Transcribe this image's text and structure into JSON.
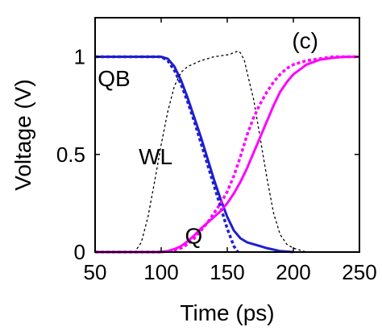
{
  "chart_data": {
    "type": "line",
    "title": "",
    "xlabel": "Time (ps)",
    "ylabel": "Voltage (V)",
    "xlim": [
      50,
      250
    ],
    "ylim": [
      0,
      1.2
    ],
    "xticks": [
      50,
      100,
      150,
      200,
      250
    ],
    "xtick_labels": [
      "50",
      "100",
      "150",
      "200",
      "250"
    ],
    "yticks": [
      0,
      0.5,
      1
    ],
    "ytick_labels": [
      "0",
      "0.5",
      "1"
    ],
    "grid": false,
    "legend": "none",
    "annotations": [
      {
        "text": "(c)",
        "x": 199,
        "y": 1.085
      },
      {
        "text": "QB",
        "x": 52,
        "y": 0.89
      },
      {
        "text": "WL",
        "x": 83,
        "y": 0.49
      },
      {
        "text": "Q",
        "x": 118,
        "y": 0.085
      }
    ],
    "series": [
      {
        "color": "#1f1fd0",
        "style": "solid",
        "x": [
          50,
          90,
          100,
          105,
          110,
          115,
          120,
          125,
          130,
          135,
          140,
          145,
          150,
          155,
          160,
          165,
          170,
          175,
          180,
          190,
          200
        ],
        "y": [
          1.0,
          1.0,
          1.0,
          0.99,
          0.95,
          0.88,
          0.79,
          0.69,
          0.59,
          0.48,
          0.37,
          0.27,
          0.18,
          0.11,
          0.07,
          0.05,
          0.04,
          0.03,
          0.02,
          0.005,
          0.0
        ]
      },
      {
        "color": "#1f1fd0",
        "style": "dotted",
        "x": [
          50,
          90,
          100,
          105,
          110,
          115,
          120,
          125,
          130,
          135,
          140,
          145,
          150,
          155,
          158
        ],
        "y": [
          1.0,
          1.0,
          1.0,
          0.98,
          0.93,
          0.86,
          0.77,
          0.67,
          0.56,
          0.45,
          0.34,
          0.23,
          0.12,
          0.03,
          0.0
        ]
      },
      {
        "color": "#000000",
        "style": "dashed",
        "x": [
          50,
          80,
          85,
          90,
          95,
          100,
          105,
          110,
          115,
          120,
          130,
          140,
          150,
          155,
          158,
          160,
          163,
          165,
          170,
          175,
          180,
          185,
          190,
          195,
          200,
          205,
          210,
          220,
          250
        ],
        "y": [
          0.0,
          0.0,
          0.05,
          0.18,
          0.36,
          0.55,
          0.72,
          0.85,
          0.92,
          0.95,
          0.98,
          1.0,
          1.01,
          1.02,
          1.03,
          1.02,
          0.98,
          0.92,
          0.78,
          0.58,
          0.38,
          0.2,
          0.09,
          0.04,
          0.02,
          0.01,
          0.0,
          0.0,
          0.0
        ]
      },
      {
        "color": "#ff00ff",
        "style": "solid",
        "x": [
          50,
          100,
          105,
          110,
          115,
          120,
          125,
          130,
          135,
          140,
          145,
          150,
          155,
          160,
          165,
          170,
          175,
          180,
          185,
          190,
          195,
          200,
          210,
          220,
          230,
          240,
          250
        ],
        "y": [
          0.0,
          0.0,
          0.005,
          0.015,
          0.03,
          0.055,
          0.085,
          0.12,
          0.15,
          0.18,
          0.21,
          0.25,
          0.3,
          0.36,
          0.43,
          0.51,
          0.59,
          0.67,
          0.75,
          0.82,
          0.87,
          0.91,
          0.96,
          0.985,
          0.995,
          1.0,
          1.0
        ]
      },
      {
        "color": "#ff00ff",
        "style": "dotted",
        "x": [
          50,
          100,
          110,
          115,
          120,
          125,
          130,
          135,
          140,
          145,
          150,
          155,
          160,
          165,
          170,
          175,
          180,
          185,
          190,
          195,
          200,
          210,
          220,
          230,
          250
        ],
        "y": [
          0.0,
          0.0,
          0.01,
          0.02,
          0.04,
          0.07,
          0.11,
          0.15,
          0.2,
          0.25,
          0.31,
          0.39,
          0.49,
          0.6,
          0.69,
          0.76,
          0.82,
          0.87,
          0.91,
          0.94,
          0.96,
          0.98,
          0.99,
          1.0,
          1.0
        ]
      }
    ]
  }
}
